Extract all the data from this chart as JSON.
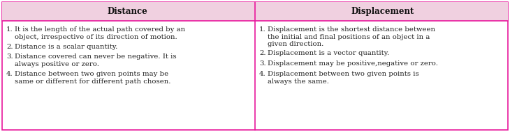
{
  "header_bg": "#f0d0e0",
  "header_text_color": "#111111",
  "body_bg": "#ffffff",
  "border_color": "#e8189c",
  "text_color": "#222222",
  "col1_header": "Distance",
  "col2_header": "Displacement",
  "col1_points": [
    "It is the length of the actual path covered by an\nobject, irrespective of its direction of motion.",
    "Distance is a scalar quantity.",
    "Distance covered can never be negative. It is\nalways positive or zero.",
    "Distance between two given points may be\nsame or different for different path chosen."
  ],
  "col2_points": [
    "Displacement is the shortest distance between\nthe initial and final positions of an object in a\ngiven direction.",
    "Displacement is a vector quantity.",
    "Displacement may be positive,negative or zero.",
    "Displacement between two given points is\nalways the same."
  ],
  "header_fontsize": 8.5,
  "body_fontsize": 7.3,
  "fig_width": 7.3,
  "fig_height": 1.9,
  "dpi": 100
}
